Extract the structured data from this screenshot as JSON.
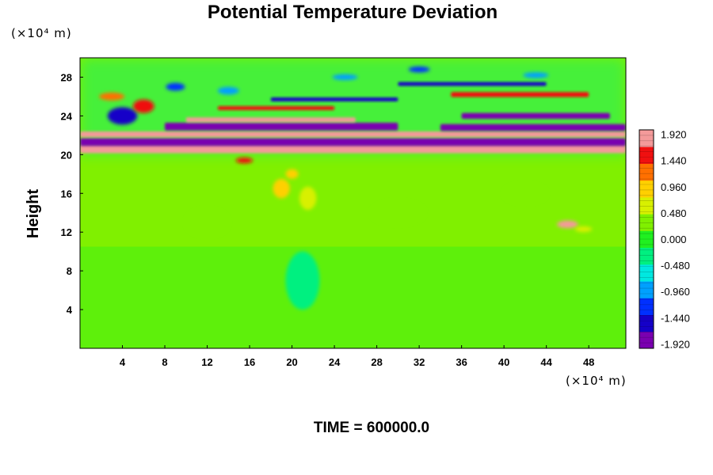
{
  "chart_data": {
    "type": "heatmap",
    "title": "Potential Temperature Deviation",
    "ylabel": "Height",
    "x_unit": "(×10⁴ m)",
    "y_unit": "(×10⁴ m)",
    "xlim": [
      0,
      51.5
    ],
    "ylim": [
      0,
      30
    ],
    "x_ticks": [
      4,
      8,
      12,
      16,
      20,
      24,
      28,
      32,
      36,
      40,
      44,
      48
    ],
    "y_ticks": [
      4,
      8,
      12,
      16,
      20,
      24,
      28
    ],
    "colorbar": {
      "min": -2.0,
      "max": 2.0,
      "tick_values": [
        1.92,
        1.44,
        0.96,
        0.48,
        0.0,
        -0.48,
        -0.96,
        -1.44,
        -1.92
      ],
      "tick_labels": [
        "1.920",
        "1.440",
        "0.960",
        "0.480",
        "0.000",
        "-0.480",
        "-0.960",
        "-1.440",
        "-1.920"
      ],
      "colors": [
        "#7a00b0",
        "#1500c8",
        "#0030ff",
        "#00a0ff",
        "#00e8e0",
        "#00f080",
        "#20f020",
        "#80f000",
        "#d8f000",
        "#ffd000",
        "#ff7000",
        "#f01010",
        "#f49a9a"
      ]
    },
    "features": [
      {
        "kind": "band",
        "x0": 0,
        "x1": 51.5,
        "y": 20.6,
        "thickness": 0.9,
        "value": 1.9
      },
      {
        "kind": "band",
        "x0": 0,
        "x1": 51.5,
        "y": 21.3,
        "thickness": 0.8,
        "value": -1.9
      },
      {
        "kind": "band",
        "x0": 0,
        "x1": 51.5,
        "y": 22.1,
        "thickness": 0.6,
        "value": 1.9
      },
      {
        "kind": "band",
        "x0": 8,
        "x1": 30,
        "y": 22.9,
        "thickness": 0.8,
        "value": -1.9
      },
      {
        "kind": "band",
        "x0": 34,
        "x1": 51.5,
        "y": 22.8,
        "thickness": 0.7,
        "value": -1.9
      },
      {
        "kind": "band",
        "x0": 10,
        "x1": 26,
        "y": 23.6,
        "thickness": 0.5,
        "value": 1.9
      },
      {
        "kind": "band",
        "x0": 36,
        "x1": 50,
        "y": 24.0,
        "thickness": 0.6,
        "value": -1.9
      },
      {
        "kind": "band",
        "x0": 35,
        "x1": 48,
        "y": 26.2,
        "thickness": 0.5,
        "value": 1.5
      },
      {
        "kind": "band",
        "x0": 30,
        "x1": 44,
        "y": 27.3,
        "thickness": 0.4,
        "value": -1.6
      },
      {
        "kind": "band",
        "x0": 18,
        "x1": 30,
        "y": 25.7,
        "thickness": 0.4,
        "value": -1.4
      },
      {
        "kind": "band",
        "x0": 13,
        "x1": 24,
        "y": 24.8,
        "thickness": 0.4,
        "value": 1.4
      },
      {
        "kind": "band",
        "x0": 0,
        "x1": 51.5,
        "y": 11.0,
        "thickness": 0.3,
        "value": 0.3
      },
      {
        "kind": "blob",
        "x": 46,
        "y": 12.8,
        "rx": 1.0,
        "ry": 0.4,
        "value": 1.8
      },
      {
        "kind": "blob",
        "x": 47.5,
        "y": 12.3,
        "rx": 0.8,
        "ry": 0.3,
        "value": 0.6
      },
      {
        "kind": "blob",
        "x": 19,
        "y": 16.5,
        "rx": 0.8,
        "ry": 1.0,
        "value": 0.9
      },
      {
        "kind": "blob",
        "x": 21.5,
        "y": 15.5,
        "rx": 0.8,
        "ry": 1.2,
        "value": 0.7
      },
      {
        "kind": "blob",
        "x": 20,
        "y": 18.0,
        "rx": 0.6,
        "ry": 0.5,
        "value": 1.0
      },
      {
        "kind": "blob",
        "x": 15.5,
        "y": 19.4,
        "rx": 0.8,
        "ry": 0.3,
        "value": 1.5
      },
      {
        "kind": "blob",
        "x": 4,
        "y": 24.0,
        "rx": 1.4,
        "ry": 0.9,
        "value": -1.5
      },
      {
        "kind": "blob",
        "x": 6,
        "y": 25.0,
        "rx": 1.0,
        "ry": 0.7,
        "value": 1.6
      },
      {
        "kind": "blob",
        "x": 3,
        "y": 26.0,
        "rx": 1.2,
        "ry": 0.4,
        "value": 1.2
      },
      {
        "kind": "blob",
        "x": 9,
        "y": 27.0,
        "rx": 0.9,
        "ry": 0.4,
        "value": -1.1
      },
      {
        "kind": "blob",
        "x": 14,
        "y": 26.6,
        "rx": 1.0,
        "ry": 0.4,
        "value": -1.0
      },
      {
        "kind": "blob",
        "x": 32,
        "y": 28.8,
        "rx": 1.0,
        "ry": 0.3,
        "value": -1.2
      },
      {
        "kind": "blob",
        "x": 25,
        "y": 28.0,
        "rx": 1.2,
        "ry": 0.3,
        "value": -0.9
      },
      {
        "kind": "blob",
        "x": 43,
        "y": 28.2,
        "rx": 1.2,
        "ry": 0.3,
        "value": -0.8
      },
      {
        "kind": "blob",
        "x": 12,
        "y": 13.0,
        "rx": 2.0,
        "ry": 1.4,
        "value": 0.3
      },
      {
        "kind": "blob",
        "x": 30,
        "y": 14.0,
        "rx": 2.5,
        "ry": 1.2,
        "value": 0.25
      },
      {
        "kind": "blob",
        "x": 42,
        "y": 16.0,
        "rx": 2.0,
        "ry": 1.0,
        "value": 0.3
      },
      {
        "kind": "blob",
        "x": 21,
        "y": 7.0,
        "rx": 1.6,
        "ry": 3.0,
        "value": -0.2
      }
    ]
  },
  "time_label": "TIME = 600000.0"
}
